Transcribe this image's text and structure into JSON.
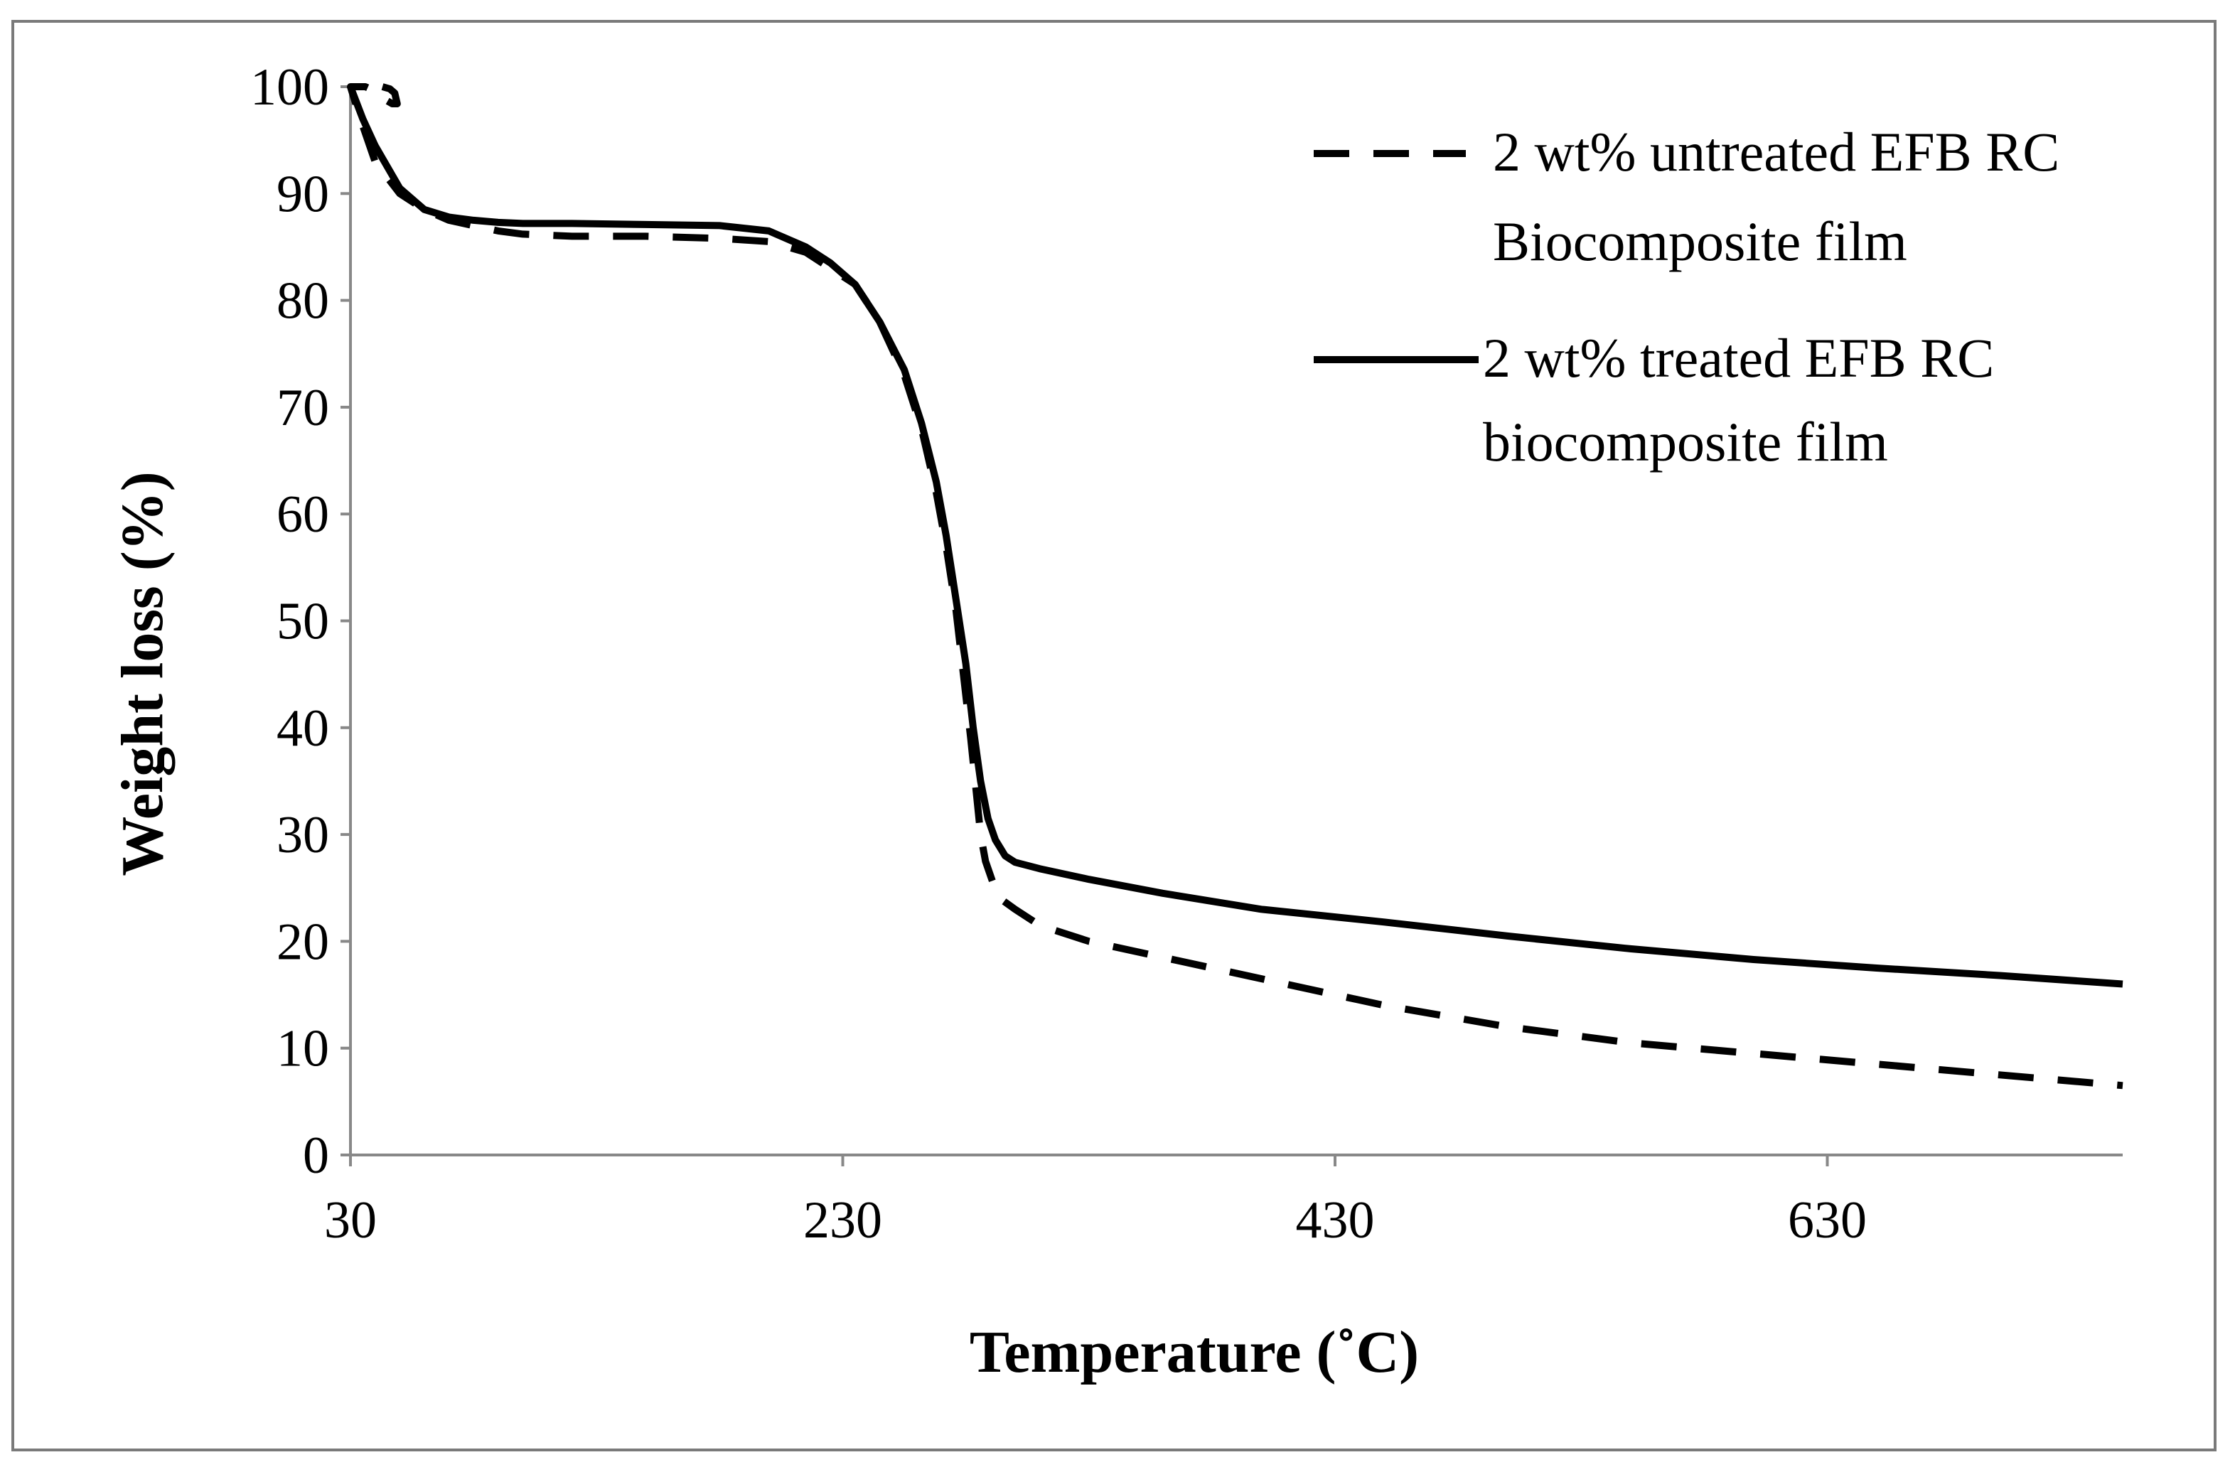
{
  "chart_data": {
    "type": "line",
    "title": "",
    "xlabel": "Temperature (˚C)",
    "ylabel": "Weight loss (%)",
    "xlim": [
      30,
      750
    ],
    "ylim": [
      0,
      100
    ],
    "x_ticks": [
      30,
      230,
      430,
      630
    ],
    "x_tick_labels": [
      "30",
      "230",
      "430",
      "630"
    ],
    "y_ticks": [
      0,
      10,
      20,
      30,
      40,
      50,
      60,
      70,
      80,
      90,
      100
    ],
    "y_tick_labels": [
      "0",
      "10",
      "20",
      "30",
      "40",
      "50",
      "60",
      "70",
      "80",
      "90",
      "100"
    ],
    "grid": false,
    "legend_position": "top-right",
    "series": [
      {
        "name": "2 wt% untreated EFB RC Biocomposite film",
        "legend_lines": [
          "2 wt% untreated EFB RC",
          "Biocomposite film"
        ],
        "style": "dashed",
        "color": "#000000",
        "x": [
          43,
          46,
          48,
          49,
          47,
          44,
          40,
          36,
          30,
          34,
          40,
          50,
          60,
          70,
          80,
          90,
          100,
          120,
          150,
          180,
          200,
          215,
          225,
          235,
          245,
          255,
          262,
          268,
          272,
          276,
          279,
          282,
          284,
          286,
          288,
          291,
          294,
          300,
          310,
          330,
          360,
          400,
          450,
          500,
          550,
          600,
          650,
          700,
          750
        ],
        "y": [
          100,
          99.8,
          99.4,
          98.4,
          98.4,
          98.8,
          99.6,
          100,
          100,
          97,
          93,
          90,
          88.5,
          87.5,
          87,
          86.5,
          86.2,
          86,
          86,
          85.8,
          85.5,
          84.5,
          83,
          81.5,
          78,
          73,
          68,
          62,
          57,
          51,
          45,
          39,
          34.5,
          30,
          27.5,
          25.5,
          24,
          23,
          21.5,
          20,
          18.5,
          16.5,
          14,
          12,
          10.5,
          9.5,
          8.5,
          7.5,
          6.5
        ]
      },
      {
        "name": "2 wt% treated EFB RC biocomposite film",
        "legend_lines": [
          "2 wt% treated EFB RC",
          "biocomposite film"
        ],
        "style": "solid",
        "color": "#000000",
        "x": [
          30,
          35,
          40,
          50,
          60,
          70,
          80,
          90,
          100,
          120,
          150,
          180,
          200,
          215,
          225,
          235,
          245,
          255,
          262,
          268,
          272,
          276,
          280,
          283,
          286,
          289,
          292,
          296,
          300,
          310,
          330,
          360,
          400,
          450,
          500,
          550,
          600,
          650,
          700,
          750
        ],
        "y": [
          100,
          97,
          94.5,
          90.5,
          88.5,
          87.8,
          87.5,
          87.3,
          87.2,
          87.2,
          87.1,
          87,
          86.5,
          85,
          83.5,
          81.5,
          78,
          73.5,
          68.5,
          63,
          58,
          52,
          46,
          40,
          35,
          31.5,
          29.5,
          28,
          27.4,
          26.8,
          25.8,
          24.5,
          23,
          21.8,
          20.5,
          19.3,
          18.3,
          17.5,
          16.8,
          16
        ]
      }
    ]
  }
}
